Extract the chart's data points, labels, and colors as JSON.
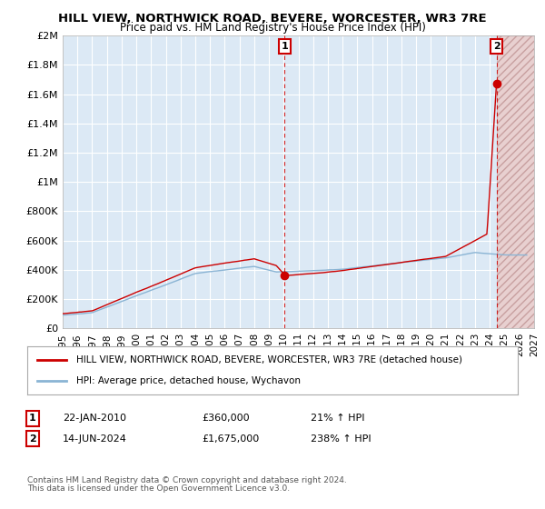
{
  "title": "HILL VIEW, NORTHWICK ROAD, BEVERE, WORCESTER, WR3 7RE",
  "subtitle": "Price paid vs. HM Land Registry's House Price Index (HPI)",
  "legend_house": "HILL VIEW, NORTHWICK ROAD, BEVERE, WORCESTER, WR3 7RE (detached house)",
  "legend_hpi": "HPI: Average price, detached house, Wychavon",
  "footnote1": "Contains HM Land Registry data © Crown copyright and database right 2024.",
  "footnote2": "This data is licensed under the Open Government Licence v3.0.",
  "transaction1_date": "22-JAN-2010",
  "transaction1_price": "£360,000",
  "transaction1_hpi": "21% ↑ HPI",
  "transaction1_year": 2010.055,
  "transaction1_value": 360000,
  "transaction2_date": "14-JUN-2024",
  "transaction2_price": "£1,675,000",
  "transaction2_hpi": "238% ↑ HPI",
  "transaction2_year": 2024.45,
  "transaction2_value": 1675000,
  "ylim": [
    0,
    2000000
  ],
  "yticks": [
    0,
    200000,
    400000,
    600000,
    800000,
    1000000,
    1200000,
    1400000,
    1600000,
    1800000,
    2000000
  ],
  "ytick_labels": [
    "£0",
    "£200K",
    "£400K",
    "£600K",
    "£800K",
    "£1M",
    "£1.2M",
    "£1.4M",
    "£1.6M",
    "£1.8M",
    "£2M"
  ],
  "xlim": [
    1995,
    2027
  ],
  "background_color": "#dce9f5",
  "grid_color": "#ffffff",
  "red_color": "#cc0000",
  "blue_color": "#8ab4d4",
  "hatch_start": 2024.45,
  "hatch_end": 2027
}
